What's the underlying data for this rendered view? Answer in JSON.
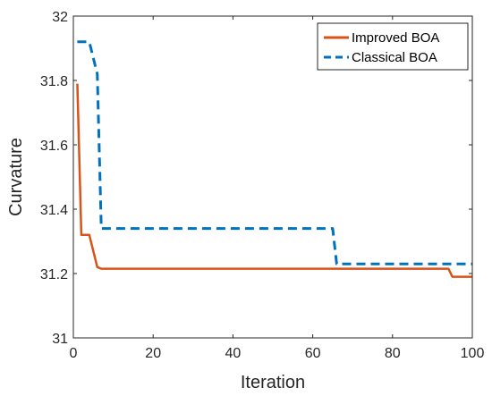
{
  "chart_data": {
    "type": "line",
    "xlabel": "Iteration",
    "ylabel": "Curvature",
    "xlim": [
      0,
      100
    ],
    "ylim": [
      31,
      32
    ],
    "xticks": [
      "0",
      "20",
      "40",
      "60",
      "80",
      "100"
    ],
    "yticks": [
      "31",
      "31.2",
      "31.4",
      "31.6",
      "31.8",
      "32"
    ],
    "grid": false,
    "legend_position": "top-right",
    "series": [
      {
        "name": "Improved BOA",
        "color": "#D95319",
        "line_style": "solid",
        "points": [
          [
            1,
            31.79
          ],
          [
            2,
            31.32
          ],
          [
            4,
            31.32
          ],
          [
            6,
            31.22
          ],
          [
            7,
            31.215
          ],
          [
            94,
            31.215
          ],
          [
            95,
            31.19
          ],
          [
            100,
            31.19
          ]
        ]
      },
      {
        "name": "Classical BOA",
        "color": "#0072BD",
        "line_style": "dashed",
        "points": [
          [
            1,
            31.92
          ],
          [
            4,
            31.92
          ],
          [
            6,
            31.82
          ],
          [
            7,
            31.34
          ],
          [
            65,
            31.34
          ],
          [
            66,
            31.23
          ],
          [
            100,
            31.23
          ]
        ]
      }
    ]
  }
}
